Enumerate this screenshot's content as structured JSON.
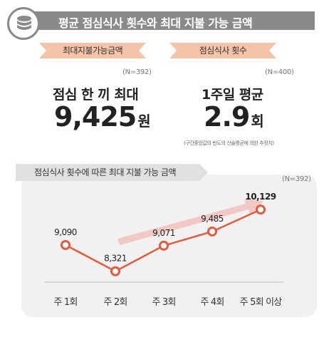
{
  "banner": {
    "title": "평균 점심식사 횟수와 최대 지불 가능 금액",
    "icon": "coins-stack-icon"
  },
  "left_stat": {
    "ribbon": "최대지불가능금액",
    "note": "(N=392)",
    "label": "점심 한 끼 최대",
    "value": "9,425",
    "unit": "원"
  },
  "right_stat": {
    "ribbon": "점심식사 횟수",
    "note": "(N=400)",
    "label": "1주일 평균",
    "value": "2.9",
    "unit": "회",
    "footnote": "(구간중앙값의 빈도의 산술평균에 의한 추정치)"
  },
  "colors": {
    "accent": "#e8593a",
    "ribbon": "#f5c4a8",
    "banner": "#8a8a8a",
    "panel": "#f1f1f1",
    "arrow": "#f2b7b0"
  },
  "chart_data": {
    "type": "line",
    "title": "점심식사 횟수에 따른 최대 지불 가능 금액",
    "note": "(N=392)",
    "categories": [
      "주 1회",
      "주 2회",
      "주 3회",
      "주 4회",
      "주 5회 이상"
    ],
    "values": [
      9090,
      8321,
      9071,
      9485,
      10129
    ],
    "value_labels": [
      "9,090",
      "8,321",
      "9,071",
      "9,485",
      "10,129"
    ],
    "ylim": [
      7500,
      10800
    ],
    "grid": false
  }
}
